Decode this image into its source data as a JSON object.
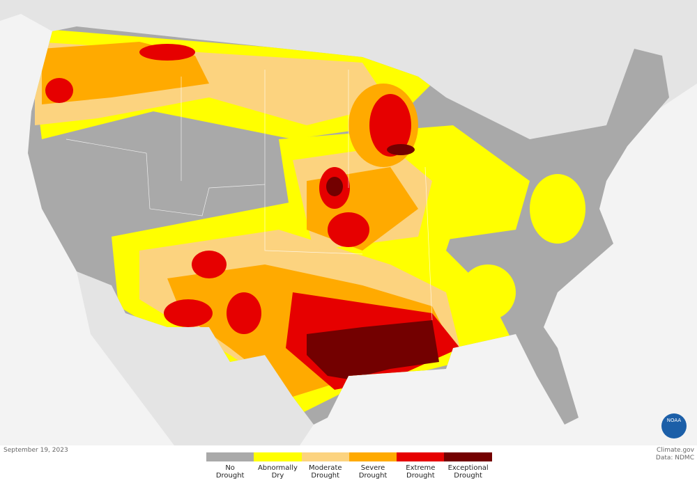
{
  "date": "September 19, 2023",
  "credit": {
    "site": "Climate.gov",
    "data": "Data: NDMC"
  },
  "logo": "NOAA",
  "legend": [
    {
      "label": "No Drought",
      "color": "#a9a9a9"
    },
    {
      "label": "Abnormally Dry",
      "color": "#ffff00"
    },
    {
      "label": "Moderate Drought",
      "color": "#fcd37f"
    },
    {
      "label": "Severe Drought",
      "color": "#ffaa00"
    },
    {
      "label": "Extreme Drought",
      "color": "#e60000"
    },
    {
      "label": "Exceptional Drought",
      "color": "#730000"
    }
  ]
}
